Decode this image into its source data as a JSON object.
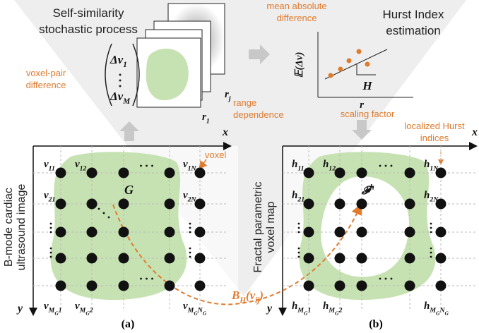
{
  "top": {
    "title": [
      "Self-similarity",
      "stochastic process"
    ],
    "voxel_pair": [
      "voxel-pair",
      "difference"
    ],
    "vector_first": [
      {
        "t": "Δv"
      },
      {
        "sub": "1"
      }
    ],
    "vector_last": [
      {
        "t": "Δv"
      },
      {
        "sub": "M"
      }
    ],
    "r_j": [
      {
        "t": "r"
      },
      {
        "sub": "j"
      }
    ],
    "r_1": [
      {
        "t": "r"
      },
      {
        "sub": "1"
      }
    ],
    "range": [
      "range",
      "dependence"
    ],
    "mad": [
      "mean absolute",
      "difference"
    ],
    "hurst": [
      "Hurst Index",
      "estimation"
    ],
    "plot_ylabel": "𝔼(Δv)",
    "plot_xlabel": "r",
    "plot_slope": "H",
    "scaling": "scaling factor",
    "localized": [
      "localized Hurst",
      "indices"
    ]
  },
  "left": {
    "axis_x": "x",
    "axis_y": "y",
    "side_label": [
      "B-mode cardiac",
      "ultrasound image"
    ],
    "region": "G",
    "voxel": "voxel",
    "labels": [
      [
        {
          "t": "v"
        },
        {
          "sub": "11"
        }
      ],
      [
        {
          "t": "v"
        },
        {
          "sub": "12"
        }
      ],
      [
        {
          "t": "v"
        },
        {
          "sub": "1N"
        }
      ],
      [
        {
          "t": "v"
        },
        {
          "sub": "21"
        }
      ],
      [
        {
          "t": "v"
        },
        {
          "sub": "2N"
        }
      ],
      [
        {
          "t": "v"
        },
        {
          "sub": "M"
        },
        {
          "subsub": "G"
        },
        {
          "sub": "1"
        }
      ],
      [
        {
          "t": "v"
        },
        {
          "sub": "M"
        },
        {
          "subsub": "G"
        },
        {
          "sub": "2"
        }
      ],
      [
        {
          "t": "v"
        },
        {
          "sub": "M"
        },
        {
          "subsub": "G"
        },
        {
          "sub": "N"
        },
        {
          "subsub": "G"
        }
      ]
    ],
    "caption": "(a)"
  },
  "right": {
    "axis_x": "x",
    "axis_y": "y",
    "side_label": [
      "Fractal parametric",
      "voxel map"
    ],
    "region": [
      {
        "t": "𝓕"
      },
      {
        "sup": "h"
      }
    ],
    "labels": [
      [
        {
          "t": "h"
        },
        {
          "sub": "11"
        }
      ],
      [
        {
          "t": "h"
        },
        {
          "sub": "12"
        }
      ],
      [
        {
          "t": "h"
        },
        {
          "sub": "1N"
        }
      ],
      [
        {
          "t": "h"
        },
        {
          "sub": "21"
        }
      ],
      [
        {
          "t": "h"
        },
        {
          "sub": "2N"
        }
      ],
      [
        {
          "t": "h"
        },
        {
          "sub": "M"
        },
        {
          "subsub": "G"
        },
        {
          "sub": "1"
        }
      ],
      [
        {
          "t": "h"
        },
        {
          "sub": "M"
        },
        {
          "subsub": "G"
        },
        {
          "sub": "2"
        }
      ],
      [
        {
          "t": "h"
        },
        {
          "sub": "M"
        },
        {
          "subsub": "G"
        },
        {
          "sub": "N"
        },
        {
          "subsub": "G"
        }
      ]
    ],
    "caption": "(b)"
  },
  "mapping": [
    {
      "t": "B"
    },
    {
      "sub": "H"
    },
    {
      "t": "(v"
    },
    {
      "sub": "ij"
    },
    {
      "t": ")"
    }
  ]
}
